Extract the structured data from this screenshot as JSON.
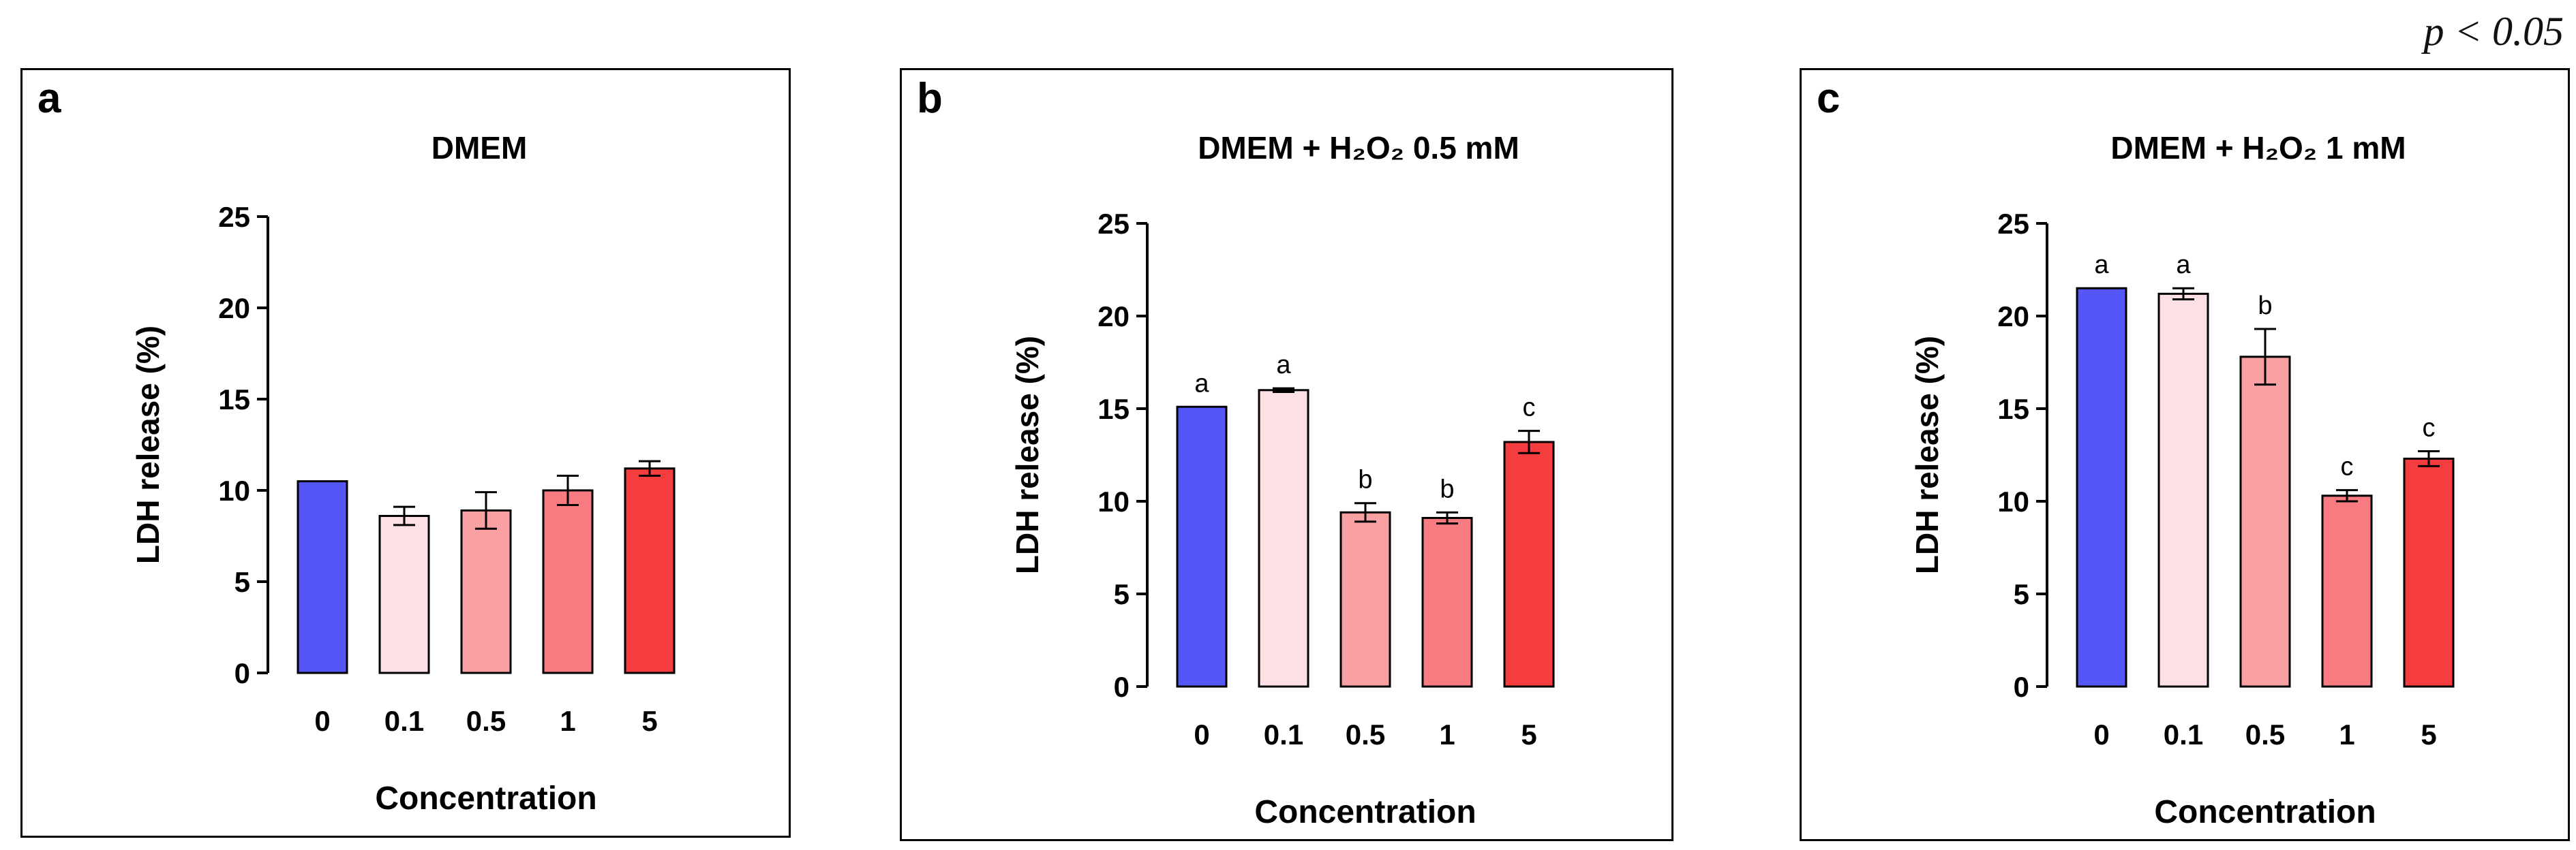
{
  "note": "p < 0.05",
  "chart_data": [
    {
      "type": "bar",
      "panel": "a",
      "title": "DMEM",
      "xlabel": "Concentration",
      "ylabel": "LDH release (%)",
      "ylim": [
        0,
        25
      ],
      "yticks": [
        0,
        5,
        10,
        15,
        20,
        25
      ],
      "categories": [
        "0",
        "0.1",
        "0.5",
        "1",
        "5"
      ],
      "values": [
        10.5,
        8.6,
        8.9,
        10.0,
        11.2
      ],
      "errors": [
        0,
        0.5,
        1.0,
        0.8,
        0.4
      ],
      "letters": [
        "",
        "",
        "",
        "",
        ""
      ],
      "colors": [
        "#5457f5",
        "#fde0e4",
        "#f9a0a3",
        "#f77b80",
        "#f53d40"
      ]
    },
    {
      "type": "bar",
      "panel": "b",
      "title": "DMEM + H₂O₂ 0.5 mM",
      "xlabel": "Concentration",
      "ylabel": "LDH release (%)",
      "ylim": [
        0,
        25
      ],
      "yticks": [
        0,
        5,
        10,
        15,
        20,
        25
      ],
      "categories": [
        "0",
        "0.1",
        "0.5",
        "1",
        "5"
      ],
      "values": [
        15.1,
        16.0,
        9.4,
        9.1,
        13.2
      ],
      "errors": [
        0,
        0.1,
        0.5,
        0.3,
        0.6
      ],
      "letters": [
        "a",
        "a",
        "b",
        "b",
        "c"
      ],
      "colors": [
        "#5457f5",
        "#fde0e4",
        "#f9a0a3",
        "#f77b80",
        "#f53d40"
      ]
    },
    {
      "type": "bar",
      "panel": "c",
      "title": "DMEM + H₂O₂ 1 mM",
      "xlabel": "Concentration",
      "ylabel": "LDH release (%)",
      "ylim": [
        0,
        25
      ],
      "yticks": [
        0,
        5,
        10,
        15,
        20,
        25
      ],
      "categories": [
        "0",
        "0.1",
        "0.5",
        "1",
        "5"
      ],
      "values": [
        21.5,
        21.2,
        17.8,
        10.3,
        12.3
      ],
      "errors": [
        0,
        0.3,
        1.5,
        0.3,
        0.4
      ],
      "letters": [
        "a",
        "a",
        "b",
        "c",
        "c"
      ],
      "colors": [
        "#5457f5",
        "#fde0e4",
        "#f9a0a3",
        "#f77b80",
        "#f53d40"
      ]
    }
  ]
}
